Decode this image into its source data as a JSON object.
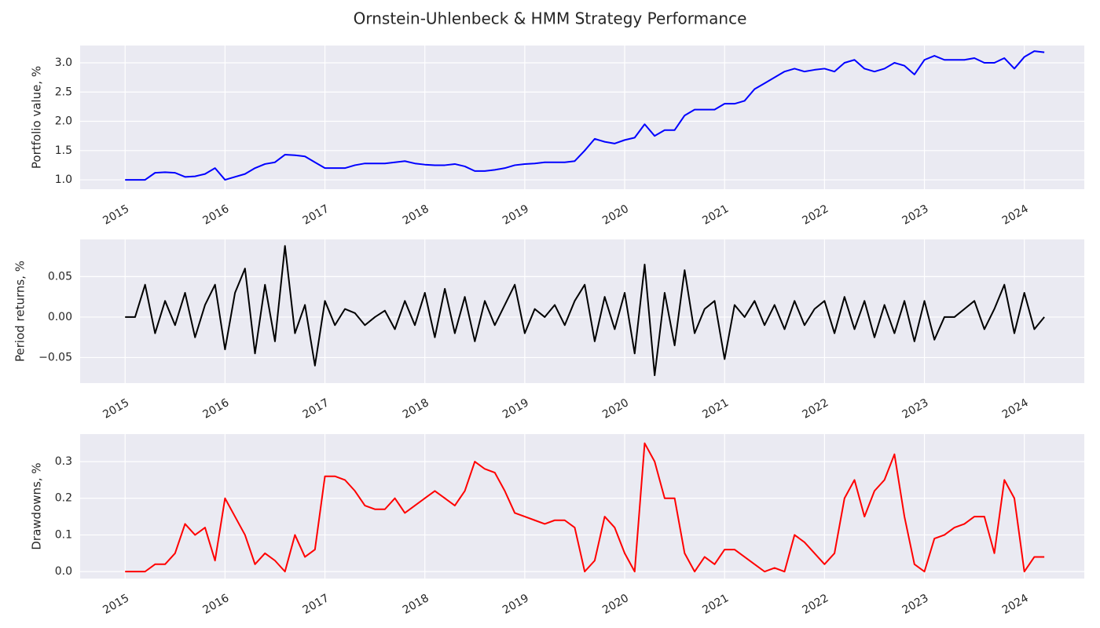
{
  "title": "Ornstein-Uhlenbeck & HMM Strategy Performance",
  "chart_data": [
    {
      "type": "line",
      "ylabel": "Portfolio value, %",
      "color": "#0000ff",
      "grid": true,
      "xlim": [
        2014.55,
        2024.6
      ],
      "xticks": [
        2015,
        2016,
        2017,
        2018,
        2019,
        2020,
        2021,
        2022,
        2023,
        2024
      ],
      "ylim": [
        0.84,
        3.295
      ],
      "yticks": [
        {
          "value": 1,
          "label": "1.0"
        },
        1.5,
        {
          "value": 2,
          "label": "2.0"
        },
        2.5,
        {
          "value": 3,
          "label": "3.0"
        }
      ],
      "x": [
        2015.0,
        2015.1,
        2015.2,
        2015.3,
        2015.4,
        2015.5,
        2015.6,
        2015.7,
        2015.8,
        2015.9,
        2016.0,
        2016.1,
        2016.2,
        2016.3,
        2016.4,
        2016.5,
        2016.6,
        2016.7,
        2016.8,
        2016.9,
        2017.0,
        2017.1,
        2017.2,
        2017.3,
        2017.4,
        2017.5,
        2017.6,
        2017.7,
        2017.8,
        2017.9,
        2018.0,
        2018.1,
        2018.2,
        2018.3,
        2018.4,
        2018.5,
        2018.6,
        2018.7,
        2018.8,
        2018.9,
        2019.0,
        2019.1,
        2019.2,
        2019.3,
        2019.4,
        2019.5,
        2019.6,
        2019.7,
        2019.8,
        2019.9,
        2020.0,
        2020.1,
        2020.2,
        2020.3,
        2020.4,
        2020.5,
        2020.6,
        2020.7,
        2020.8,
        2020.9,
        2021.0,
        2021.1,
        2021.2,
        2021.3,
        2021.4,
        2021.5,
        2021.6,
        2021.7,
        2021.8,
        2021.9,
        2022.0,
        2022.1,
        2022.2,
        2022.3,
        2022.4,
        2022.5,
        2022.6,
        2022.7,
        2022.8,
        2022.9,
        2023.0,
        2023.1,
        2023.2,
        2023.3,
        2023.4,
        2023.5,
        2023.6,
        2023.7,
        2023.8,
        2023.9,
        2024.0,
        2024.1,
        2024.2
      ],
      "values": [
        1.0,
        1.0,
        1.0,
        1.12,
        1.13,
        1.12,
        1.05,
        1.06,
        1.1,
        1.2,
        1.0,
        1.05,
        1.1,
        1.2,
        1.27,
        1.3,
        1.43,
        1.42,
        1.4,
        1.3,
        1.2,
        1.2,
        1.2,
        1.25,
        1.28,
        1.28,
        1.28,
        1.3,
        1.32,
        1.28,
        1.26,
        1.25,
        1.25,
        1.27,
        1.23,
        1.15,
        1.15,
        1.17,
        1.2,
        1.25,
        1.27,
        1.28,
        1.3,
        1.3,
        1.3,
        1.32,
        1.5,
        1.7,
        1.65,
        1.62,
        1.68,
        1.72,
        1.95,
        1.75,
        1.85,
        1.85,
        2.1,
        2.2,
        2.2,
        2.2,
        2.3,
        2.3,
        2.35,
        2.55,
        2.65,
        2.75,
        2.85,
        2.9,
        2.85,
        2.88,
        2.9,
        2.85,
        3.0,
        3.05,
        2.9,
        2.85,
        2.9,
        3.0,
        2.95,
        2.8,
        3.05,
        3.12,
        3.05,
        3.05,
        3.05,
        3.08,
        3.0,
        3.0,
        3.08,
        2.9,
        3.1,
        3.2,
        3.18
      ]
    },
    {
      "type": "line",
      "ylabel": "Period returns, %",
      "color": "#000000",
      "grid": true,
      "xlim": [
        2014.55,
        2024.6
      ],
      "xticks": [
        2015,
        2016,
        2017,
        2018,
        2019,
        2020,
        2021,
        2022,
        2023,
        2024
      ],
      "ylim": [
        -0.0816,
        0.096
      ],
      "yticks": [
        {
          "value": -0.05,
          "label": "−0.05"
        },
        {
          "value": 0,
          "label": "0.00"
        },
        0.05
      ],
      "x": [
        2015.0,
        2015.1,
        2015.2,
        2015.3,
        2015.4,
        2015.5,
        2015.6,
        2015.7,
        2015.8,
        2015.9,
        2016.0,
        2016.1,
        2016.2,
        2016.3,
        2016.4,
        2016.5,
        2016.6,
        2016.7,
        2016.8,
        2016.9,
        2017.0,
        2017.1,
        2017.2,
        2017.3,
        2017.4,
        2017.5,
        2017.6,
        2017.7,
        2017.8,
        2017.9,
        2018.0,
        2018.1,
        2018.2,
        2018.3,
        2018.4,
        2018.5,
        2018.6,
        2018.7,
        2018.8,
        2018.9,
        2019.0,
        2019.1,
        2019.2,
        2019.3,
        2019.4,
        2019.5,
        2019.6,
        2019.7,
        2019.8,
        2019.9,
        2020.0,
        2020.1,
        2020.2,
        2020.3,
        2020.4,
        2020.5,
        2020.6,
        2020.7,
        2020.8,
        2020.9,
        2021.0,
        2021.1,
        2021.2,
        2021.3,
        2021.4,
        2021.5,
        2021.6,
        2021.7,
        2021.8,
        2021.9,
        2022.0,
        2022.1,
        2022.2,
        2022.3,
        2022.4,
        2022.5,
        2022.6,
        2022.7,
        2022.8,
        2022.9,
        2023.0,
        2023.1,
        2023.2,
        2023.3,
        2023.4,
        2023.5,
        2023.6,
        2023.7,
        2023.8,
        2023.9,
        2024.0,
        2024.1,
        2024.2
      ],
      "values": [
        0,
        0,
        0.04,
        -0.02,
        0.02,
        -0.01,
        0.03,
        -0.025,
        0.015,
        0.04,
        -0.04,
        0.03,
        0.06,
        -0.045,
        0.04,
        -0.03,
        0.088,
        -0.02,
        0.015,
        -0.06,
        0.02,
        -0.01,
        0.01,
        0.005,
        -0.01,
        0,
        0.008,
        -0.015,
        0.02,
        -0.01,
        0.03,
        -0.025,
        0.035,
        -0.02,
        0.025,
        -0.03,
        0.02,
        -0.01,
        0.015,
        0.04,
        -0.02,
        0.01,
        0,
        0.015,
        -0.01,
        0.02,
        0.04,
        -0.03,
        0.025,
        -0.015,
        0.03,
        -0.045,
        0.065,
        -0.072,
        0.03,
        -0.035,
        0.058,
        -0.02,
        0.01,
        0.02,
        -0.052,
        0.015,
        0,
        0.02,
        -0.01,
        0.015,
        -0.015,
        0.02,
        -0.01,
        0.01,
        0.02,
        -0.02,
        0.025,
        -0.015,
        0.02,
        -0.025,
        0.015,
        -0.02,
        0.02,
        -0.03,
        0.02,
        -0.028,
        0,
        0,
        0.01,
        0.02,
        -0.015,
        0.01,
        0.04,
        -0.02,
        0.03,
        -0.015,
        0
      ]
    },
    {
      "type": "line",
      "ylabel": "Drawdowns, %",
      "color": "#ff0000",
      "grid": true,
      "xlim": [
        2014.55,
        2024.6
      ],
      "xticks": [
        2015,
        2016,
        2017,
        2018,
        2019,
        2020,
        2021,
        2022,
        2023,
        2024
      ],
      "ylim": [
        -0.019,
        0.375
      ],
      "yticks": [
        {
          "value": 0,
          "label": "0.0"
        },
        0.1,
        0.2,
        0.3
      ],
      "x": [
        2015.0,
        2015.1,
        2015.2,
        2015.3,
        2015.4,
        2015.5,
        2015.6,
        2015.7,
        2015.8,
        2015.9,
        2016.0,
        2016.1,
        2016.2,
        2016.3,
        2016.4,
        2016.5,
        2016.6,
        2016.7,
        2016.8,
        2016.9,
        2017.0,
        2017.1,
        2017.2,
        2017.3,
        2017.4,
        2017.5,
        2017.6,
        2017.7,
        2017.8,
        2017.9,
        2018.0,
        2018.1,
        2018.2,
        2018.3,
        2018.4,
        2018.5,
        2018.6,
        2018.7,
        2018.8,
        2018.9,
        2019.0,
        2019.1,
        2019.2,
        2019.3,
        2019.4,
        2019.5,
        2019.6,
        2019.7,
        2019.8,
        2019.9,
        2020.0,
        2020.1,
        2020.2,
        2020.3,
        2020.4,
        2020.5,
        2020.6,
        2020.7,
        2020.8,
        2020.9,
        2021.0,
        2021.1,
        2021.2,
        2021.3,
        2021.4,
        2021.5,
        2021.6,
        2021.7,
        2021.8,
        2021.9,
        2022.0,
        2022.1,
        2022.2,
        2022.3,
        2022.4,
        2022.5,
        2022.6,
        2022.7,
        2022.8,
        2022.9,
        2023.0,
        2023.1,
        2023.2,
        2023.3,
        2023.4,
        2023.5,
        2023.6,
        2023.7,
        2023.8,
        2023.9,
        2024.0,
        2024.1,
        2024.2
      ],
      "values": [
        0,
        0,
        0,
        0.02,
        0.02,
        0.05,
        0.13,
        0.1,
        0.12,
        0.03,
        0.2,
        0.15,
        0.1,
        0.02,
        0.05,
        0.03,
        0.0,
        0.1,
        0.04,
        0.06,
        0.26,
        0.26,
        0.25,
        0.22,
        0.18,
        0.17,
        0.17,
        0.2,
        0.16,
        0.18,
        0.2,
        0.22,
        0.2,
        0.18,
        0.22,
        0.3,
        0.28,
        0.27,
        0.22,
        0.16,
        0.15,
        0.14,
        0.13,
        0.14,
        0.14,
        0.12,
        0.0,
        0.03,
        0.15,
        0.12,
        0.05,
        0.0,
        0.35,
        0.3,
        0.2,
        0.2,
        0.05,
        0.0,
        0.04,
        0.02,
        0.06,
        0.06,
        0.04,
        0.02,
        0.0,
        0.01,
        0.0,
        0.1,
        0.08,
        0.05,
        0.02,
        0.05,
        0.2,
        0.25,
        0.15,
        0.22,
        0.25,
        0.32,
        0.15,
        0.02,
        0.0,
        0.09,
        0.1,
        0.12,
        0.13,
        0.15,
        0.15,
        0.05,
        0.25,
        0.2,
        0.0,
        0.04,
        0.04
      ]
    }
  ]
}
